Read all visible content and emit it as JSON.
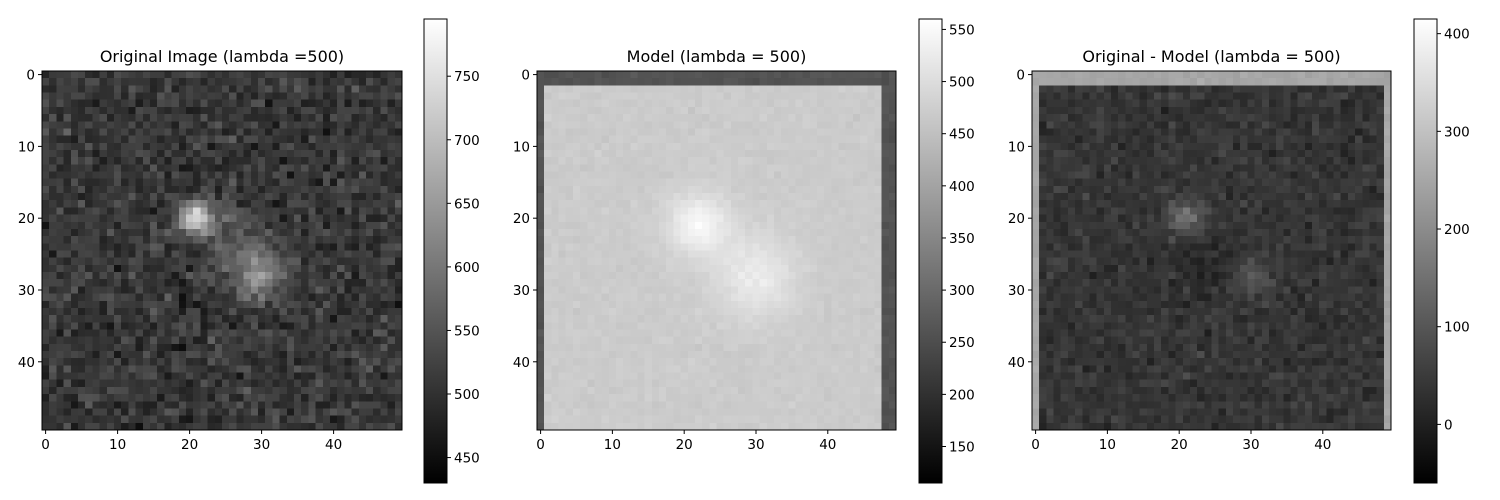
{
  "chart_data": [
    {
      "type": "heatmap",
      "title": "Original Image (lambda =500)",
      "colormap": "gray",
      "shape": [
        50,
        50
      ],
      "xlim": [
        0,
        49
      ],
      "ylim": [
        49,
        0
      ],
      "xticks": [
        0,
        10,
        20,
        30,
        40
      ],
      "yticks": [
        0,
        10,
        20,
        30,
        40
      ],
      "colorbar": {
        "vmin": 430,
        "vmax": 795,
        "ticks": [
          450,
          500,
          550,
          600,
          650,
          700,
          750
        ]
      },
      "field": {
        "background": 510,
        "noise": 30,
        "edge_rows": [],
        "edge_cols": [],
        "edge_value": null,
        "blobs": [
          {
            "x": 21,
            "y": 20,
            "amp": 230,
            "sigma": 1.6
          },
          {
            "x": 30,
            "y": 28,
            "amp": 120,
            "sigma": 2.3
          },
          {
            "x": 26,
            "y": 24,
            "amp": 50,
            "sigma": 3.5
          }
        ]
      }
    },
    {
      "type": "heatmap",
      "title": "Model (lambda = 500)",
      "colormap": "gray",
      "shape": [
        50,
        50
      ],
      "xlim": [
        0,
        49
      ],
      "ylim": [
        49,
        0
      ],
      "xticks": [
        0,
        10,
        20,
        30,
        40
      ],
      "yticks": [
        0,
        10,
        20,
        30,
        40
      ],
      "colorbar": {
        "vmin": 115,
        "vmax": 560,
        "ticks": [
          150,
          200,
          250,
          300,
          350,
          400,
          450,
          500,
          550
        ]
      },
      "field": {
        "background": 470,
        "noise": 6,
        "edge_rows": [
          0,
          1
        ],
        "edge_cols": [
          0,
          48,
          49
        ],
        "edge_value": 260,
        "blobs": [
          {
            "x": 22,
            "y": 21,
            "amp": 75,
            "sigma": 3.0
          },
          {
            "x": 30,
            "y": 28,
            "amp": 55,
            "sigma": 4.0
          }
        ]
      }
    },
    {
      "type": "heatmap",
      "title": "Original - Model (lambda = 500)",
      "colormap": "gray",
      "shape": [
        50,
        50
      ],
      "xlim": [
        0,
        49
      ],
      "ylim": [
        49,
        0
      ],
      "xticks": [
        0,
        10,
        20,
        30,
        40
      ],
      "yticks": [
        0,
        10,
        20,
        30,
        40
      ],
      "colorbar": {
        "vmin": -60,
        "vmax": 415,
        "ticks": [
          0,
          100,
          200,
          300,
          400
        ]
      },
      "field": {
        "background": 40,
        "noise": 22,
        "edge_rows": [
          0,
          1
        ],
        "edge_cols": [
          0,
          49
        ],
        "edge_value": 250,
        "blobs": [
          {
            "x": 21,
            "y": 20,
            "amp": 130,
            "sigma": 1.6
          },
          {
            "x": 30,
            "y": 28,
            "amp": 70,
            "sigma": 2.0
          },
          {
            "x": 24,
            "y": 26,
            "amp": -25,
            "sigma": 3.5
          }
        ]
      }
    }
  ]
}
